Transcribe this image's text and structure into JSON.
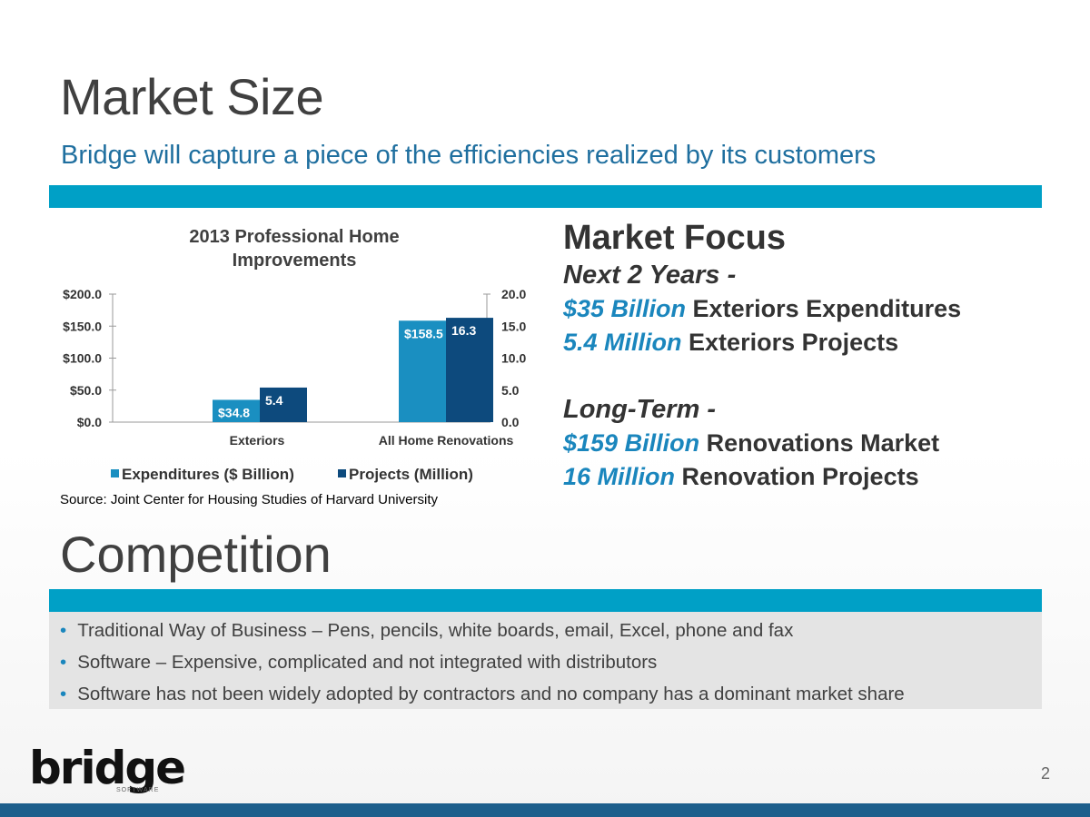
{
  "slide": {
    "title": "Market Size",
    "subtitle": "Bridge will capture a piece of the efficiencies realized by its customers",
    "page_number": "2"
  },
  "chart_data": {
    "type": "bar",
    "title_lines": [
      "2013 Professional Home",
      "Improvements"
    ],
    "categories": [
      "Exteriors",
      "All Home Renovations"
    ],
    "series": [
      {
        "name": "Expenditures ($ Billion)",
        "axis": "left",
        "color": "#1a8fc1",
        "values": [
          34.8,
          158.5
        ],
        "labels": [
          "$34.8",
          "$158.5"
        ]
      },
      {
        "name": "Projects (Million)",
        "axis": "right",
        "color": "#0d4a7d",
        "values": [
          5.4,
          16.3
        ],
        "labels": [
          "5.4",
          "16.3"
        ]
      }
    ],
    "left_axis": {
      "ylim": [
        0,
        200
      ],
      "ticks": [
        "$200.0",
        "$150.0",
        "$100.0",
        "$50.0",
        "$0.0"
      ],
      "tick_values": [
        200,
        150,
        100,
        50,
        0
      ]
    },
    "right_axis": {
      "ylim": [
        0,
        20
      ],
      "ticks": [
        "20.0",
        "15.0",
        "10.0",
        "5.0",
        "0.0"
      ],
      "tick_values": [
        20,
        15,
        10,
        5,
        0
      ]
    },
    "legend_position": "bottom",
    "grid": false
  },
  "source_note": "Source: Joint Center for Housing Studies of Harvard University",
  "market_focus": {
    "heading": "Market Focus",
    "next_label": "Next 2 Years -",
    "next_items": [
      {
        "highlight": "$35 Billion",
        "text": " Exteriors Expenditures"
      },
      {
        "highlight": "5.4 Million",
        "text": " Exteriors Projects"
      }
    ],
    "long_label": "Long-Term -",
    "long_items": [
      {
        "highlight": "$159 Billion",
        "text": " Renovations Market"
      },
      {
        "highlight": "16 Million",
        "text": " Renovation Projects"
      }
    ]
  },
  "competition": {
    "title": "Competition",
    "bullet": "•",
    "items": [
      "Traditional Way of Business – Pens, pencils, white boards, email, Excel, phone and fax",
      "Software – Expensive, complicated and not integrated with distributors",
      "Software has not been widely adopted by contractors and no company has a dominant market share"
    ]
  },
  "logo": {
    "word": "bridge",
    "tagline": "SOFTWARE"
  },
  "colors": {
    "accent_band": "#00a0c6",
    "highlight": "#1a86bd",
    "footer": "#1d5f8c"
  }
}
